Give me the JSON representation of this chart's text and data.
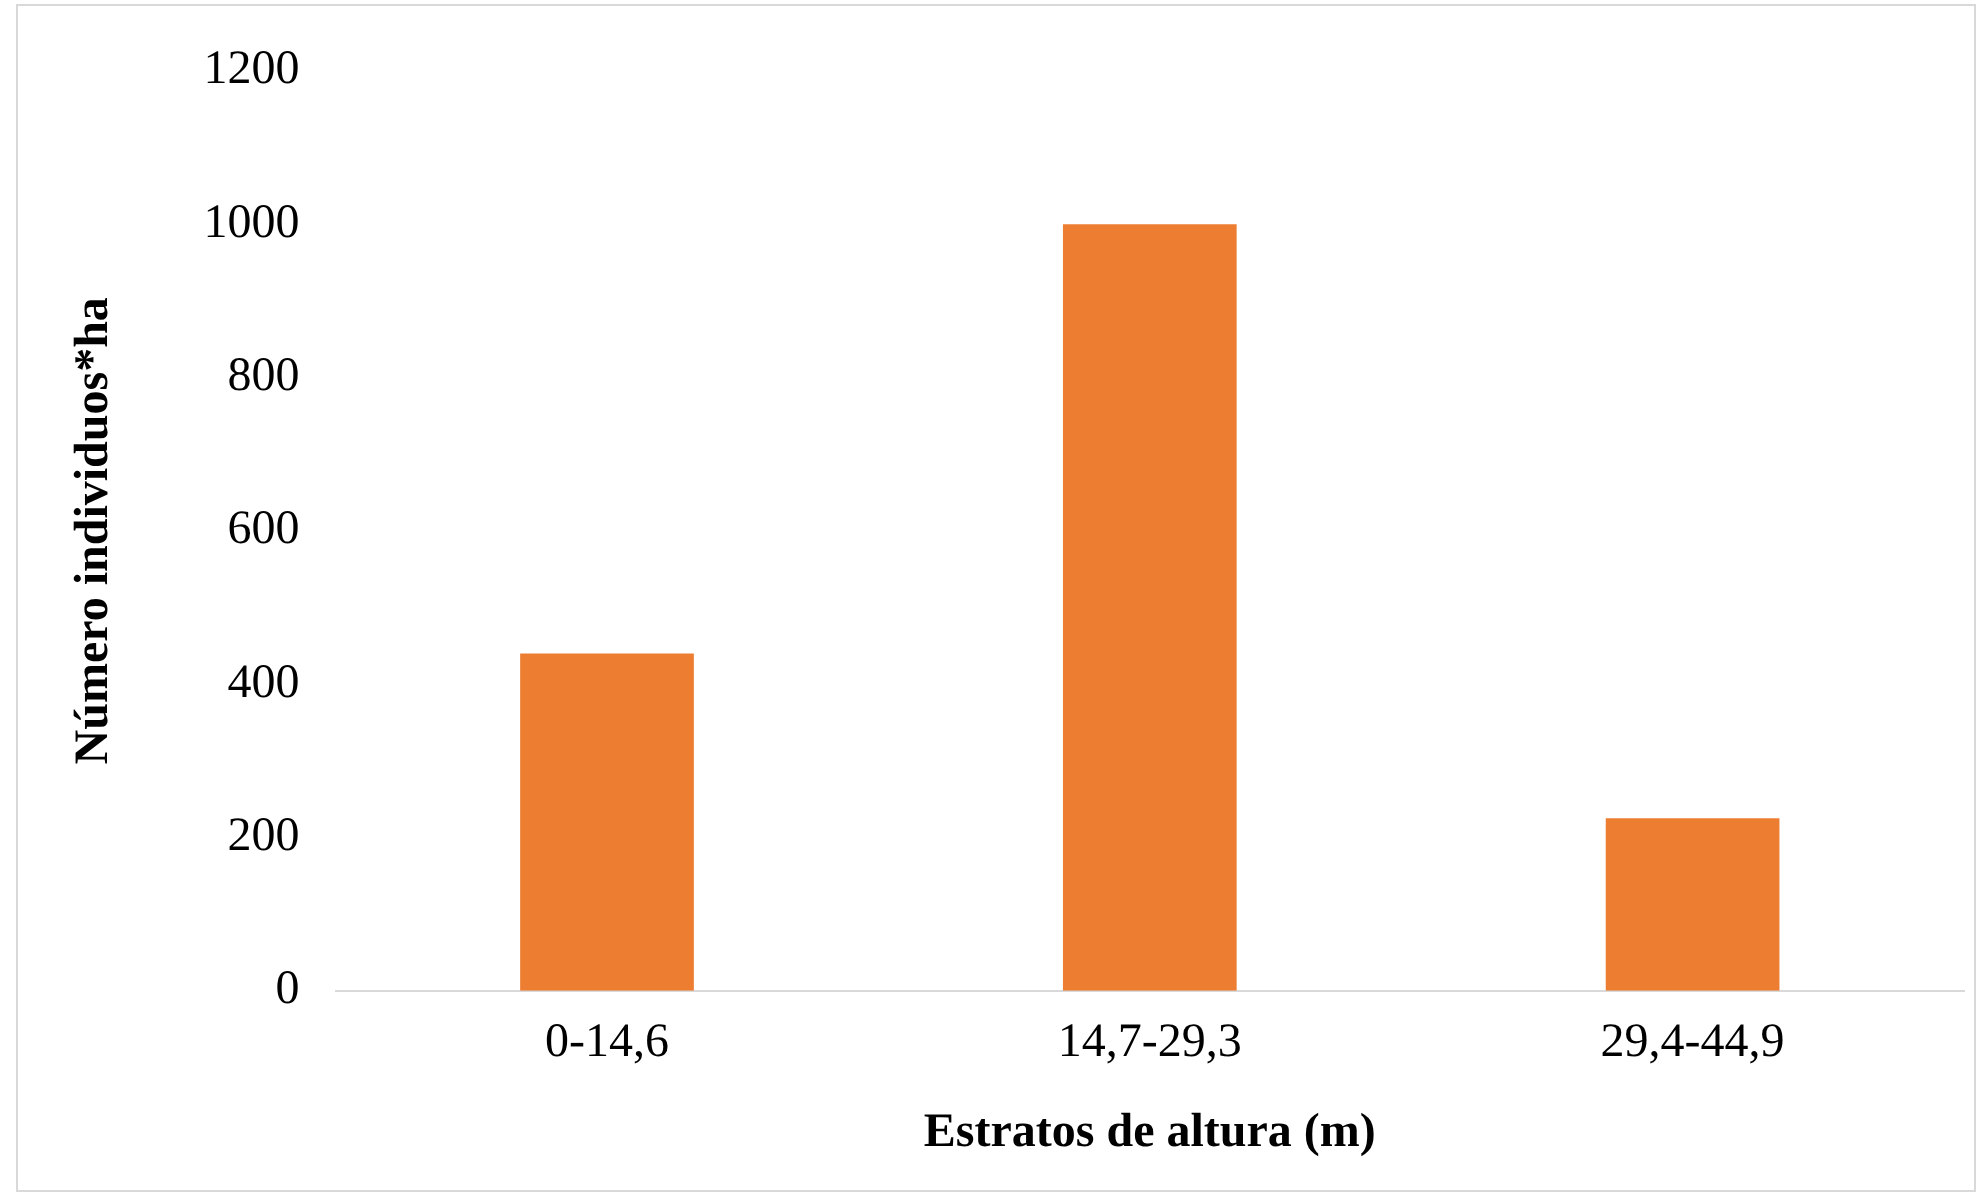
{
  "chart_data": {
    "type": "bar",
    "xlabel": "Estratos de altura (m)",
    "ylabel": "Número individuos*ha",
    "categories": [
      "0-14,6",
      "14,7-29,3",
      "29,4-44,9"
    ],
    "values": [
      440,
      1000,
      225
    ],
    "color": "#ed7d31",
    "ylim": [
      0,
      1200
    ],
    "yticks": [
      0,
      200,
      400,
      600,
      800,
      1000,
      1200
    ],
    "grid": false,
    "legend": false
  }
}
